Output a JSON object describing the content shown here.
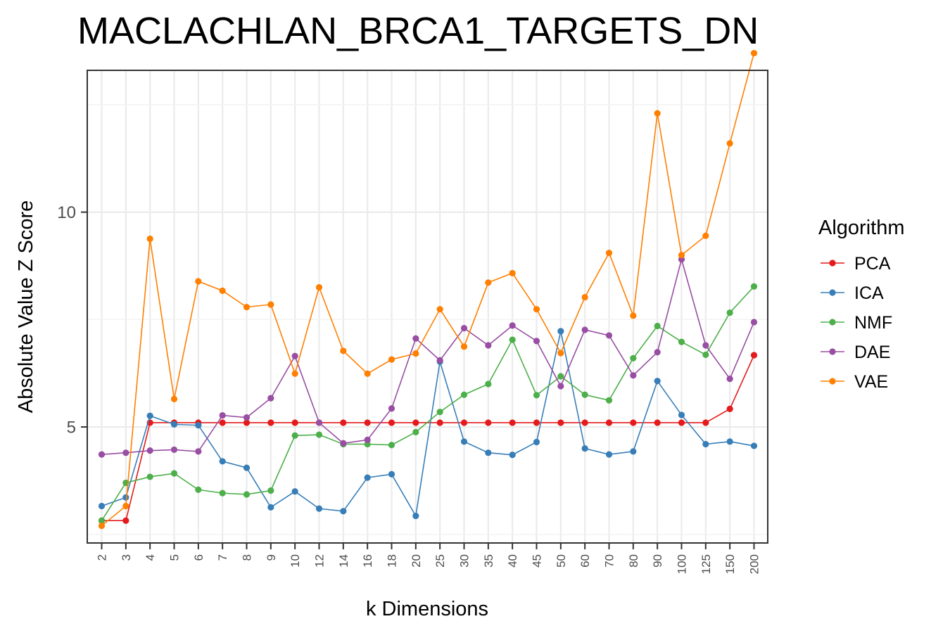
{
  "chart_data": {
    "type": "line",
    "title": "MACLACHLAN_BRCA1_TARGETS_DN",
    "xlabel": "k Dimensions",
    "ylabel": "Absolute Value Z Score",
    "categories": [
      "2",
      "3",
      "4",
      "5",
      "6",
      "7",
      "8",
      "9",
      "10",
      "12",
      "14",
      "16",
      "18",
      "20",
      "25",
      "30",
      "35",
      "40",
      "45",
      "50",
      "60",
      "70",
      "80",
      "90",
      "100",
      "125",
      "150",
      "200"
    ],
    "ylim": [
      2.3,
      13.3
    ],
    "yticks": [
      5,
      10
    ],
    "grid": true,
    "legend_title": "Algorithm",
    "legend_position": "right",
    "series": [
      {
        "name": "PCA",
        "color": "#e41a1c",
        "values": [
          2.82,
          2.82,
          5.1,
          5.1,
          5.1,
          5.1,
          5.1,
          5.1,
          5.1,
          5.1,
          5.1,
          5.1,
          5.1,
          5.1,
          5.1,
          5.1,
          5.1,
          5.1,
          5.1,
          5.1,
          5.1,
          5.1,
          5.1,
          5.1,
          5.1,
          5.1,
          5.42,
          6.67
        ]
      },
      {
        "name": "ICA",
        "color": "#377eb8",
        "values": [
          3.16,
          3.36,
          5.26,
          5.06,
          5.04,
          4.2,
          4.05,
          3.13,
          3.5,
          3.1,
          3.04,
          3.82,
          3.9,
          2.93,
          6.52,
          4.66,
          4.4,
          4.35,
          4.65,
          7.23,
          4.5,
          4.36,
          4.43,
          6.07,
          5.28,
          4.6,
          4.66,
          4.56
        ]
      },
      {
        "name": "NMF",
        "color": "#4daf4a",
        "values": [
          2.82,
          3.7,
          3.84,
          3.92,
          3.54,
          3.46,
          3.43,
          3.52,
          4.8,
          4.82,
          4.6,
          4.6,
          4.58,
          4.88,
          5.35,
          5.75,
          6.0,
          7.03,
          5.74,
          6.18,
          5.75,
          5.62,
          6.6,
          7.35,
          6.98,
          6.68,
          7.66,
          8.27
        ]
      },
      {
        "name": "DAE",
        "color": "#984ea3",
        "values": [
          4.36,
          4.4,
          4.45,
          4.47,
          4.43,
          5.27,
          5.22,
          5.67,
          6.65,
          5.1,
          4.62,
          4.7,
          5.43,
          7.06,
          6.55,
          7.3,
          6.9,
          7.36,
          7.0,
          5.95,
          7.26,
          7.13,
          6.2,
          6.74,
          8.9,
          6.9,
          6.12,
          7.44
        ]
      },
      {
        "name": "VAE",
        "color": "#ff7f00",
        "values": [
          2.7,
          3.16,
          9.38,
          5.65,
          8.39,
          8.17,
          7.79,
          7.85,
          6.24,
          8.25,
          6.77,
          6.24,
          6.57,
          6.71,
          7.74,
          6.87,
          8.36,
          8.58,
          7.74,
          6.72,
          8.02,
          9.05,
          7.59,
          12.3,
          9.0,
          9.45,
          11.6,
          13.7
        ]
      }
    ]
  }
}
